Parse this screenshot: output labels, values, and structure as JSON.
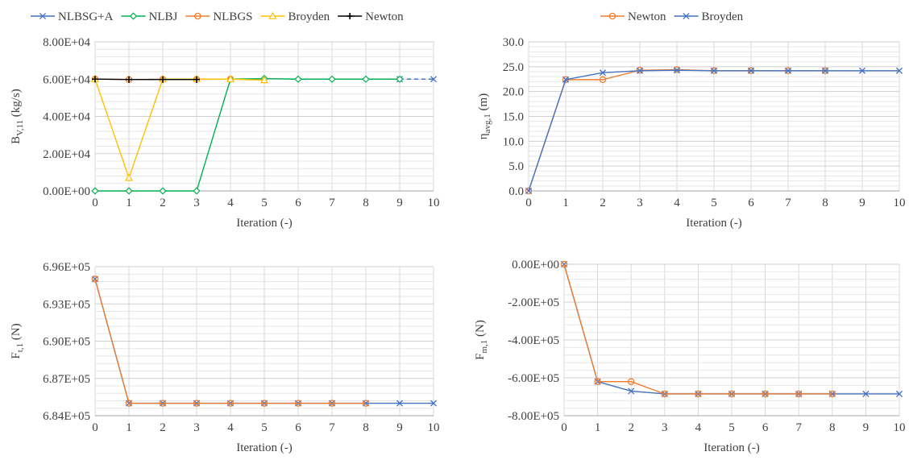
{
  "chart_data": [
    {
      "type": "line",
      "ylabel": "B",
      "ylabel_sub": "V,11",
      "ylabel_unit": " (kg/s)",
      "xlabel": "Iteration (-)",
      "xlim": [
        0,
        10
      ],
      "ylim": [
        0,
        80000
      ],
      "x_ticks": [
        "0",
        "1",
        "2",
        "3",
        "4",
        "5",
        "6",
        "7",
        "8",
        "9",
        "10"
      ],
      "y_ticks": [
        "0.00E+00",
        "2.00E+04",
        "4.00E+04",
        "6.00E+04",
        "8.00E+04"
      ],
      "legend": "top",
      "grid": true,
      "series": [
        {
          "name": "NLBSG+A",
          "color": "#4472C4",
          "marker": "x",
          "x": [
            9,
            10
          ],
          "y": [
            60000,
            60000
          ],
          "dashed": true
        },
        {
          "name": "NLBJ",
          "color": "#00B050",
          "marker": "diamond",
          "x": [
            0,
            1,
            2,
            3,
            4,
            5,
            6,
            7,
            8,
            9
          ],
          "y": [
            0,
            0,
            0,
            0,
            60000,
            60300,
            60000,
            60000,
            60000,
            60000
          ]
        },
        {
          "name": "NLBGS",
          "color": "#ED7D31",
          "marker": "circle",
          "x": [
            0,
            1,
            2,
            3,
            4
          ],
          "y": [
            60000,
            59800,
            59900,
            59900,
            60000
          ]
        },
        {
          "name": "Broyden",
          "color": "#FFC000",
          "marker": "triangle",
          "x": [
            0,
            1,
            2,
            3,
            4,
            5
          ],
          "y": [
            60000,
            7000,
            60000,
            60000,
            60000,
            59500
          ]
        },
        {
          "name": "Newton",
          "color": "#000000",
          "marker": "plus",
          "x": [
            0,
            1,
            2,
            3
          ],
          "y": [
            60000,
            59800,
            59800,
            59800
          ]
        }
      ]
    },
    {
      "type": "line",
      "ylabel": "η",
      "ylabel_sub": "avg,1",
      "ylabel_unit": " (m)",
      "xlabel": "Iteration (-)",
      "xlim": [
        0,
        10
      ],
      "ylim": [
        0,
        30
      ],
      "x_ticks": [
        "0",
        "1",
        "2",
        "3",
        "4",
        "5",
        "6",
        "7",
        "8",
        "9",
        "10"
      ],
      "y_ticks": [
        "0.0",
        "5.0",
        "10.0",
        "15.0",
        "20.0",
        "25.0",
        "30.0"
      ],
      "legend": "top",
      "grid": true,
      "series": [
        {
          "name": "Newton",
          "color": "#ED7D31",
          "marker": "circle",
          "x": [
            0,
            1,
            2,
            3,
            4,
            5,
            6,
            7,
            8
          ],
          "y": [
            0,
            22.4,
            22.4,
            24.3,
            24.4,
            24.2,
            24.2,
            24.2,
            24.2
          ]
        },
        {
          "name": "Broyden",
          "color": "#4472C4",
          "marker": "x",
          "x": [
            0,
            1,
            2,
            3,
            4,
            5,
            6,
            7,
            8,
            9,
            10
          ],
          "y": [
            0,
            22.4,
            23.8,
            24.2,
            24.3,
            24.2,
            24.2,
            24.2,
            24.2,
            24.2,
            24.2
          ]
        }
      ]
    },
    {
      "type": "line",
      "ylabel": "F",
      "ylabel_sub": "t,1",
      "ylabel_unit": " (N)",
      "xlabel": "Iteration (-)",
      "xlim": [
        0,
        10
      ],
      "ylim": [
        684000,
        696000
      ],
      "x_ticks": [
        "0",
        "1",
        "2",
        "3",
        "4",
        "5",
        "6",
        "7",
        "8",
        "9",
        "10"
      ],
      "y_ticks": [
        "6.84E+05",
        "6.87E+05",
        "6.90E+05",
        "6.93E+05",
        "6.96E+05"
      ],
      "grid": true,
      "series": [
        {
          "name": "Broyden",
          "color": "#4472C4",
          "marker": "x",
          "x": [
            0,
            1,
            2,
            3,
            4,
            5,
            6,
            7,
            8,
            9,
            10
          ],
          "y": [
            695000,
            685000,
            685000,
            685000,
            685000,
            685000,
            685000,
            685000,
            685000,
            685000,
            685000
          ]
        },
        {
          "name": "Newton",
          "color": "#ED7D31",
          "marker": "circle",
          "x": [
            0,
            1,
            2,
            3,
            4,
            5,
            6,
            7,
            8
          ],
          "y": [
            695000,
            685000,
            685000,
            685000,
            685000,
            685000,
            685000,
            685000,
            685000
          ]
        }
      ]
    },
    {
      "type": "line",
      "ylabel": "F",
      "ylabel_sub": "m,1",
      "ylabel_unit": " (N)",
      "xlabel": "Iteration (-)",
      "xlim": [
        0,
        10
      ],
      "ylim": [
        -800000,
        0
      ],
      "x_ticks": [
        "0",
        "1",
        "2",
        "3",
        "4",
        "5",
        "6",
        "7",
        "8",
        "9",
        "10"
      ],
      "y_ticks": [
        "-8.00E+05",
        "-6.00E+05",
        "-4.00E+05",
        "-2.00E+05",
        "0.00E+00"
      ],
      "grid": true,
      "series": [
        {
          "name": "Broyden",
          "color": "#4472C4",
          "marker": "x",
          "x": [
            0,
            1,
            2,
            3,
            4,
            5,
            6,
            7,
            8,
            9,
            10
          ],
          "y": [
            0,
            -620000,
            -670000,
            -685000,
            -685000,
            -685000,
            -685000,
            -685000,
            -685000,
            -685000,
            -685000
          ]
        },
        {
          "name": "Newton",
          "color": "#ED7D31",
          "marker": "circle",
          "x": [
            0,
            1,
            2,
            3,
            4,
            5,
            6,
            7,
            8
          ],
          "y": [
            0,
            -620000,
            -620000,
            -685000,
            -685000,
            -685000,
            -685000,
            -685000,
            -685000
          ]
        }
      ]
    }
  ]
}
